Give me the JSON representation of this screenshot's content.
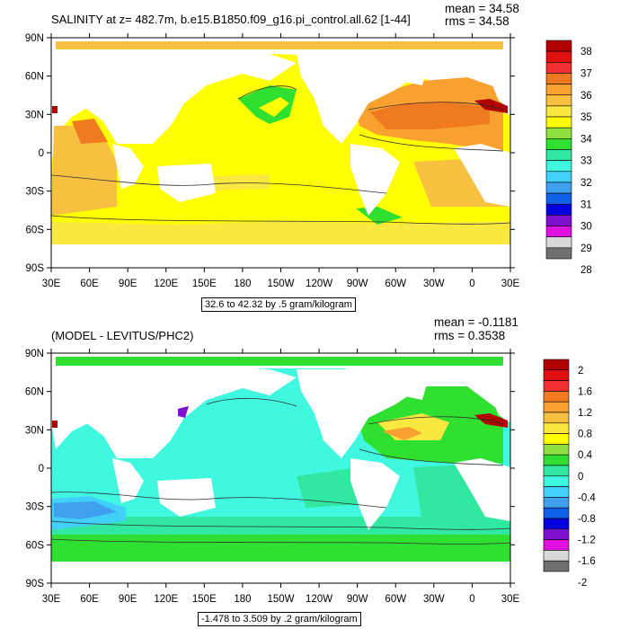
{
  "panels": [
    {
      "title": "SALINITY at z= 482.7m, b.e15.B1850.f09_g16.pi_control.all.62 [1-44]",
      "stats": {
        "mean": "mean = 34.58",
        "rms": "rms = 34.58"
      },
      "range_label": "32.6 to 42.32 by .5 gram/kilogram"
    },
    {
      "title": "(MODEL - LEVITUS/PHC2)",
      "stats": {
        "mean": "mean = -0.1181",
        "rms": "rms = 0.3538"
      },
      "range_label": "-1.478 to 3.509 by .2 gram/kilogram"
    }
  ],
  "chart_data": [
    {
      "type": "heatmap",
      "title": "SALINITY at z= 482.7m, b.e15.B1850.f09_g16.pi_control.all.62 [1-44]",
      "x_ticks": [
        "30E",
        "60E",
        "90E",
        "120E",
        "150E",
        "180",
        "150W",
        "120W",
        "90W",
        "60W",
        "30W",
        "0",
        "30E"
      ],
      "y_ticks": [
        "90N",
        "60N",
        "30N",
        "0",
        "30S",
        "60S",
        "90S"
      ],
      "xlim": [
        30,
        390
      ],
      "ylim": [
        -90,
        90
      ],
      "mean": 34.58,
      "rms": 34.58,
      "colorbar": {
        "labels": [
          "38",
          "37",
          "36",
          "35",
          "34",
          "33",
          "32",
          "31",
          "30",
          "29",
          "28"
        ],
        "colors": [
          "#b00000",
          "#e01010",
          "#f03030",
          "#f07a20",
          "#f8a030",
          "#f8c040",
          "#f8e840",
          "#ffff00",
          "#90e040",
          "#30e030",
          "#30e8a0",
          "#40f8e0",
          "#40d0f8",
          "#40a0f0",
          "#1060e8",
          "#0000e0",
          "#8010d0",
          "#e010e0",
          "#d8d8d8",
          "#707070"
        ]
      },
      "units": "gram/kilogram"
    },
    {
      "type": "heatmap",
      "title": "(MODEL - LEVITUS/PHC2)",
      "x_ticks": [
        "30E",
        "60E",
        "90E",
        "120E",
        "150E",
        "180",
        "150W",
        "120W",
        "90W",
        "60W",
        "30W",
        "0",
        "30E"
      ],
      "y_ticks": [
        "90N",
        "60N",
        "30N",
        "0",
        "30S",
        "60S",
        "90S"
      ],
      "xlim": [
        30,
        390
      ],
      "ylim": [
        -90,
        90
      ],
      "mean": -0.1181,
      "rms": 0.3538,
      "colorbar": {
        "labels": [
          "2",
          "1.6",
          "1.2",
          "0.8",
          "0.4",
          "0",
          "-0.4",
          "-0.8",
          "-1.2",
          "-1.6",
          "-2"
        ],
        "colors": [
          "#b00000",
          "#e01010",
          "#f03030",
          "#f07a20",
          "#f8a030",
          "#f8c040",
          "#f8e840",
          "#ffff00",
          "#90e040",
          "#30e030",
          "#30e8a0",
          "#40f8e0",
          "#40d0f8",
          "#40a0f0",
          "#1060e8",
          "#0000e0",
          "#8010d0",
          "#e010e0",
          "#d8d8d8",
          "#707070"
        ]
      },
      "units": "gram/kilogram"
    }
  ]
}
